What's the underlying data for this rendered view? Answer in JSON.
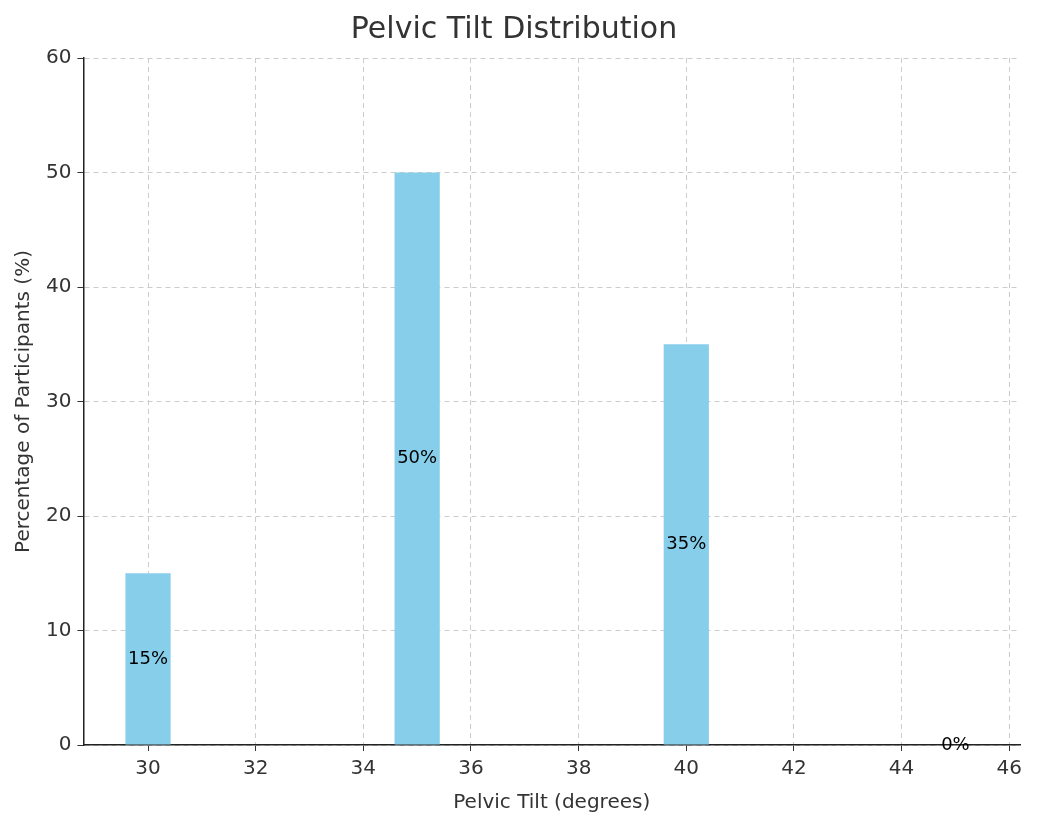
{
  "chart_data": {
    "type": "bar",
    "title": "Pelvic Tilt Distribution",
    "xlabel": "Pelvic Tilt (degrees)",
    "ylabel": "Percentage of Participants (%)",
    "x": [
      30,
      35,
      40,
      45
    ],
    "values": [
      15,
      50,
      35,
      0
    ],
    "color": "#87ceeb",
    "value_labels": [
      "15%",
      "50%",
      "35%",
      "0%"
    ],
    "xlim": [
      28.8,
      46.2
    ],
    "xticks": [
      30,
      32,
      34,
      36,
      38,
      40,
      42,
      44,
      46
    ],
    "ylim": [
      0,
      60
    ],
    "yticks": [
      0,
      10,
      20,
      30,
      40,
      50,
      60
    ],
    "grid": true
  }
}
